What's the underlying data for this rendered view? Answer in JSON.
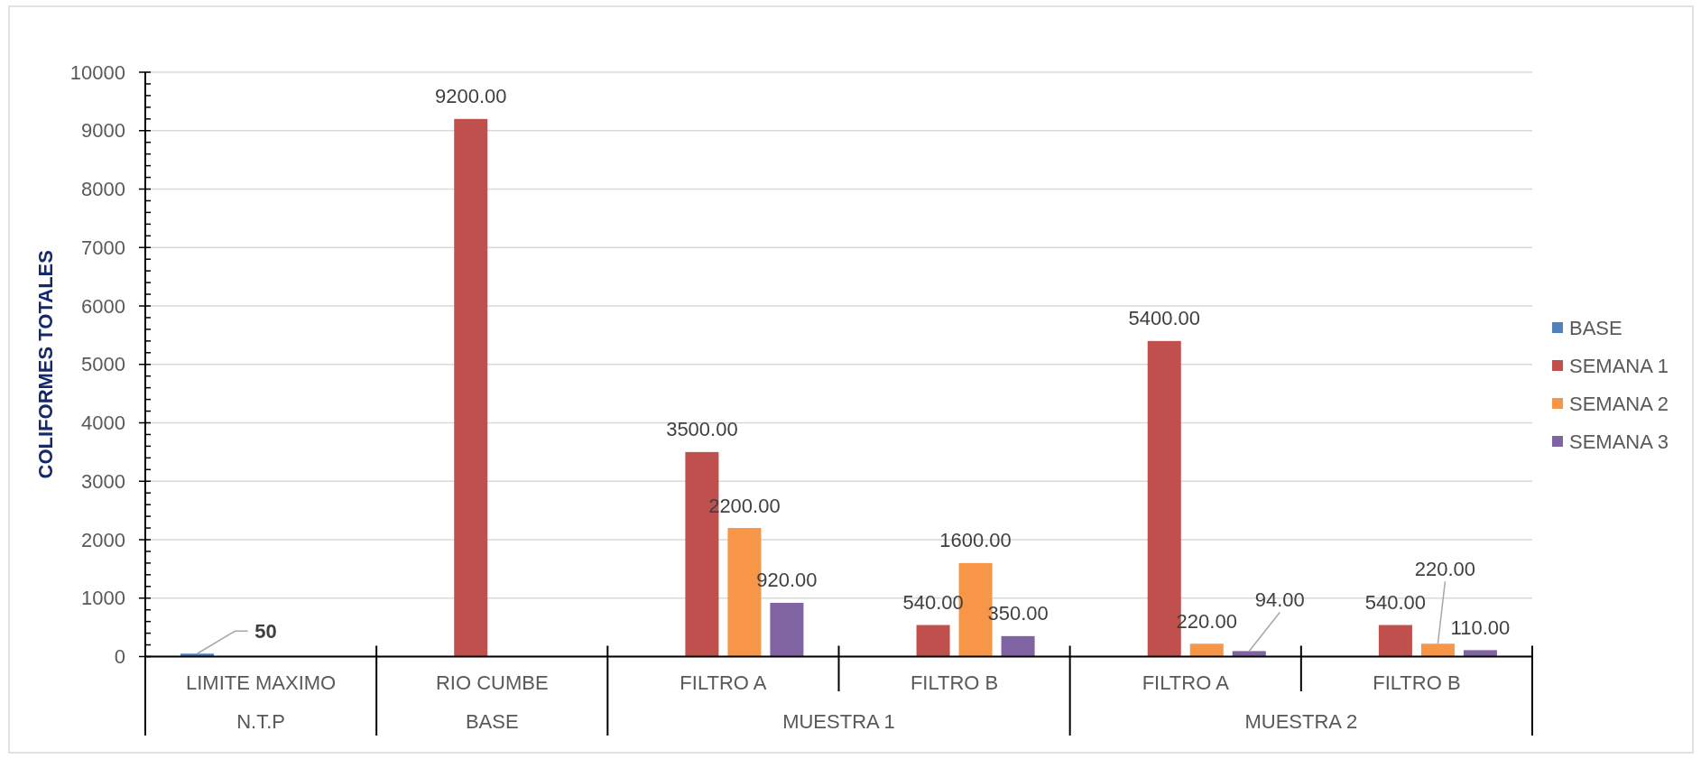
{
  "chart_data": {
    "type": "bar",
    "ylabel": "COLIFORMES TOTALES",
    "categories": [
      "LIMITE MAXIMO",
      "RIO CUMBE",
      "FILTRO A",
      "FILTRO B",
      "FILTRO A",
      "FILTRO B"
    ],
    "series": [
      {
        "name": "BASE",
        "color": "#4f81bd",
        "values": [
          50,
          null,
          null,
          null,
          null,
          null
        ],
        "value_labels": [
          "50",
          null,
          null,
          null,
          null,
          null
        ]
      },
      {
        "name": "SEMANA 1",
        "color": "#c0504d",
        "values": [
          null,
          9200,
          3500,
          540,
          5400,
          540
        ],
        "value_labels": [
          null,
          "9200.00",
          "3500.00",
          "540.00",
          "5400.00",
          "540.00"
        ]
      },
      {
        "name": "SEMANA 2",
        "color": "#f79646",
        "values": [
          null,
          null,
          2200,
          1600,
          220,
          220
        ],
        "value_labels": [
          null,
          null,
          "2200.00",
          "1600.00",
          "220.00",
          "220.00"
        ]
      },
      {
        "name": "SEMANA 3",
        "color": "#8064a2",
        "values": [
          null,
          null,
          920,
          350,
          94,
          110
        ],
        "value_labels": [
          null,
          null,
          "920.00",
          "350.00",
          "94.00",
          "110.00"
        ]
      }
    ],
    "ylim": [
      0,
      10000
    ],
    "yticks": [
      0,
      {
        "value": 200,
        "label": null
      },
      {
        "value": 400,
        "label": null
      },
      {
        "value": 600,
        "label": null
      },
      {
        "value": 800,
        "label": null
      },
      1000,
      {
        "value": 1200,
        "label": null
      },
      {
        "value": 1400,
        "label": null
      },
      {
        "value": 1600,
        "label": null
      },
      {
        "value": 1800,
        "label": null
      },
      2000,
      {
        "value": 2200,
        "label": null
      },
      {
        "value": 2400,
        "label": null
      },
      {
        "value": 2600,
        "label": null
      },
      {
        "value": 2800,
        "label": null
      },
      3000,
      {
        "value": 3200,
        "label": null
      },
      {
        "value": 3400,
        "label": null
      },
      {
        "value": 3600,
        "label": null
      },
      {
        "value": 3800,
        "label": null
      },
      4000,
      {
        "value": 4200,
        "label": null
      },
      {
        "value": 4400,
        "label": null
      },
      {
        "value": 4600,
        "label": null
      },
      {
        "value": 4800,
        "label": null
      },
      5000,
      {
        "value": 5200,
        "label": null
      },
      {
        "value": 5400,
        "label": null
      },
      {
        "value": 5600,
        "label": null
      },
      {
        "value": 5800,
        "label": null
      },
      6000,
      {
        "value": 6200,
        "label": null
      },
      {
        "value": 6400,
        "label": null
      },
      {
        "value": 6600,
        "label": null
      },
      {
        "value": 6800,
        "label": null
      },
      7000,
      {
        "value": 7200,
        "label": null
      },
      {
        "value": 7400,
        "label": null
      },
      {
        "value": 7600,
        "label": null
      },
      {
        "value": 7800,
        "label": null
      },
      8000,
      {
        "value": 8200,
        "label": null
      },
      {
        "value": 8400,
        "label": null
      },
      {
        "value": 8600,
        "label": null
      },
      {
        "value": 8800,
        "label": null
      },
      9000,
      {
        "value": 9200,
        "label": null
      },
      {
        "value": 9400,
        "label": null
      },
      {
        "value": 9600,
        "label": null
      },
      {
        "value": 9800,
        "label": null
      },
      10000
    ],
    "grid": "y",
    "legend": "right",
    "annotations": [
      "N.T.P",
      "BASE",
      "MUESTRA 1",
      "MUESTRA 2"
    ]
  }
}
